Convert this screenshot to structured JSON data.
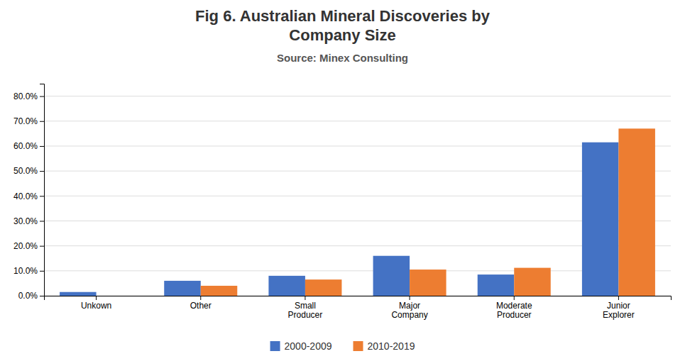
{
  "chart_data": {
    "type": "bar",
    "title": "Fig 6. Australian Mineral Discoveries by\nCompany Size",
    "subtitle": "Source: Minex Consulting",
    "categories": [
      "Unkown",
      "Other",
      "Small\nProducer",
      "Major\nCompany",
      "Moderate\nProducer",
      "Junior\nExplorer"
    ],
    "series": [
      {
        "name": "2000-2009",
        "color": "#4472C4",
        "values": [
          0.015,
          0.06,
          0.08,
          0.16,
          0.085,
          0.615
        ]
      },
      {
        "name": "2010-2019",
        "color": "#ED7D31",
        "values": [
          0.0,
          0.04,
          0.065,
          0.105,
          0.112,
          0.67
        ]
      }
    ],
    "ylim": [
      0,
      0.85
    ],
    "yticks": [
      {
        "value": 0.0,
        "label": "0.0%"
      },
      {
        "value": 0.1,
        "label": "10.0%"
      },
      {
        "value": 0.2,
        "label": "20.0%"
      },
      {
        "value": 0.3,
        "label": "30.0%"
      },
      {
        "value": 0.4,
        "label": "40.0%"
      },
      {
        "value": 0.5,
        "label": "50.0%"
      },
      {
        "value": 0.6,
        "label": "60.0%"
      },
      {
        "value": 0.7,
        "label": "70.0%"
      },
      {
        "value": 0.8,
        "label": "80.0%"
      }
    ],
    "grid": true,
    "legend": "bottom"
  }
}
